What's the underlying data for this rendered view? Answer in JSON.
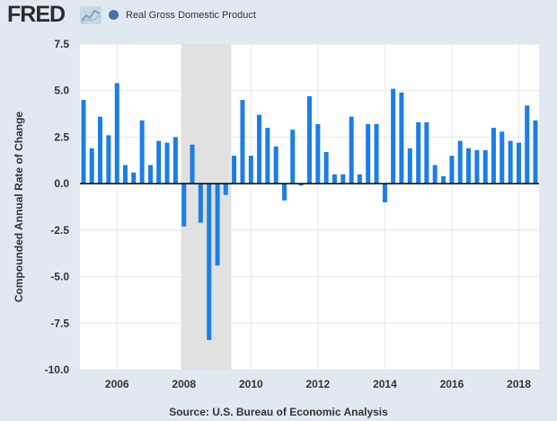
{
  "header": {
    "logo_text": "FRED",
    "logo_icon": "chart-line-icon"
  },
  "legend": {
    "label": "Real Gross Domestic Product"
  },
  "source": "Source: U.S. Bureau of Economic Analysis",
  "colors": {
    "background": "#e1e9f0",
    "plot": "#ffffff",
    "bar": "#1b7ee8",
    "recession": "#e1e1e1",
    "grid": "#e8e8e8"
  },
  "chart_data": {
    "type": "bar",
    "title": "",
    "xlabel": "",
    "ylabel": "Compounded Annual Rate of Change",
    "ylim": [
      -10,
      7.5
    ],
    "xlim": [
      "2005-01-01",
      "2018-07-01"
    ],
    "y_ticks": [
      -10.0,
      -7.5,
      -5.0,
      -2.5,
      0.0,
      2.5,
      5.0,
      7.5
    ],
    "y_tick_labels": [
      "-10.0",
      "-7.5",
      "-5.0",
      "-2.5",
      "0.0",
      "2.5",
      "5.0",
      "7.5"
    ],
    "x_ticks": [
      "2006",
      "2008",
      "2010",
      "2012",
      "2014",
      "2016",
      "2018"
    ],
    "recession": {
      "start": "2007-12-01",
      "end": "2009-06-01"
    },
    "grid": true,
    "legend_position": "top-left",
    "series": [
      {
        "name": "Real Gross Domestic Product",
        "x": [
          "2005-01-01",
          "2005-04-01",
          "2005-07-01",
          "2005-10-01",
          "2006-01-01",
          "2006-04-01",
          "2006-07-01",
          "2006-10-01",
          "2007-01-01",
          "2007-04-01",
          "2007-07-01",
          "2007-10-01",
          "2008-01-01",
          "2008-04-01",
          "2008-07-01",
          "2008-10-01",
          "2009-01-01",
          "2009-04-01",
          "2009-07-01",
          "2009-10-01",
          "2010-01-01",
          "2010-04-01",
          "2010-07-01",
          "2010-10-01",
          "2011-01-01",
          "2011-04-01",
          "2011-07-01",
          "2011-10-01",
          "2012-01-01",
          "2012-04-01",
          "2012-07-01",
          "2012-10-01",
          "2013-01-01",
          "2013-04-01",
          "2013-07-01",
          "2013-10-01",
          "2014-01-01",
          "2014-04-01",
          "2014-07-01",
          "2014-10-01",
          "2015-01-01",
          "2015-04-01",
          "2015-07-01",
          "2015-10-01",
          "2016-01-01",
          "2016-04-01",
          "2016-07-01",
          "2016-10-01",
          "2017-01-01",
          "2017-04-01",
          "2017-07-01",
          "2017-10-01",
          "2018-01-01",
          "2018-04-01",
          "2018-07-01"
        ],
        "values": [
          4.5,
          1.9,
          3.6,
          2.6,
          5.4,
          1.0,
          0.6,
          3.4,
          1.0,
          2.3,
          2.2,
          2.5,
          -2.3,
          2.1,
          -2.1,
          -8.4,
          -4.4,
          -0.6,
          1.5,
          4.5,
          1.5,
          3.7,
          3.0,
          2.0,
          -0.9,
          2.9,
          -0.1,
          4.7,
          3.2,
          1.7,
          0.5,
          0.5,
          3.6,
          0.5,
          3.2,
          3.2,
          -1.0,
          5.1,
          4.9,
          1.9,
          3.3,
          3.3,
          1.0,
          0.4,
          1.5,
          2.3,
          1.9,
          1.8,
          1.8,
          3.0,
          2.8,
          2.3,
          2.2,
          4.2,
          3.4
        ]
      }
    ]
  }
}
